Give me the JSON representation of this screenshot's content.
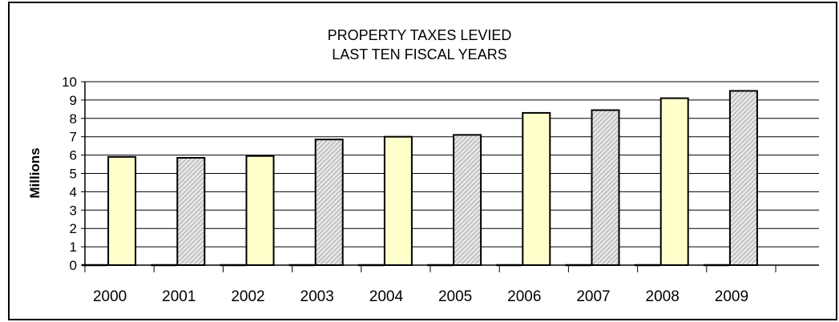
{
  "chart_data": {
    "type": "bar",
    "title": "PROPERTY TAXES LEVIED",
    "subtitle": "LAST TEN FISCAL YEARS",
    "xlabel": "",
    "ylabel": "Millions",
    "ylim": [
      0,
      10
    ],
    "yticks": [
      "0",
      "1",
      "2",
      "3",
      "4",
      "5",
      "6",
      "7",
      "8",
      "9",
      "10"
    ],
    "categories": [
      "2000",
      "2001",
      "2002",
      "2003",
      "2004",
      "2005",
      "2006",
      "2007",
      "2008",
      "2009"
    ],
    "values": [
      5.9,
      5.85,
      5.95,
      6.85,
      7.0,
      7.1,
      8.3,
      8.45,
      9.1,
      9.5
    ],
    "grid": true,
    "legend": "none",
    "colors": {
      "yellow_bar": "#ffffcc",
      "hatched_bar": "#d9d9d9",
      "grid": "#000000",
      "outline": "#000000"
    }
  }
}
